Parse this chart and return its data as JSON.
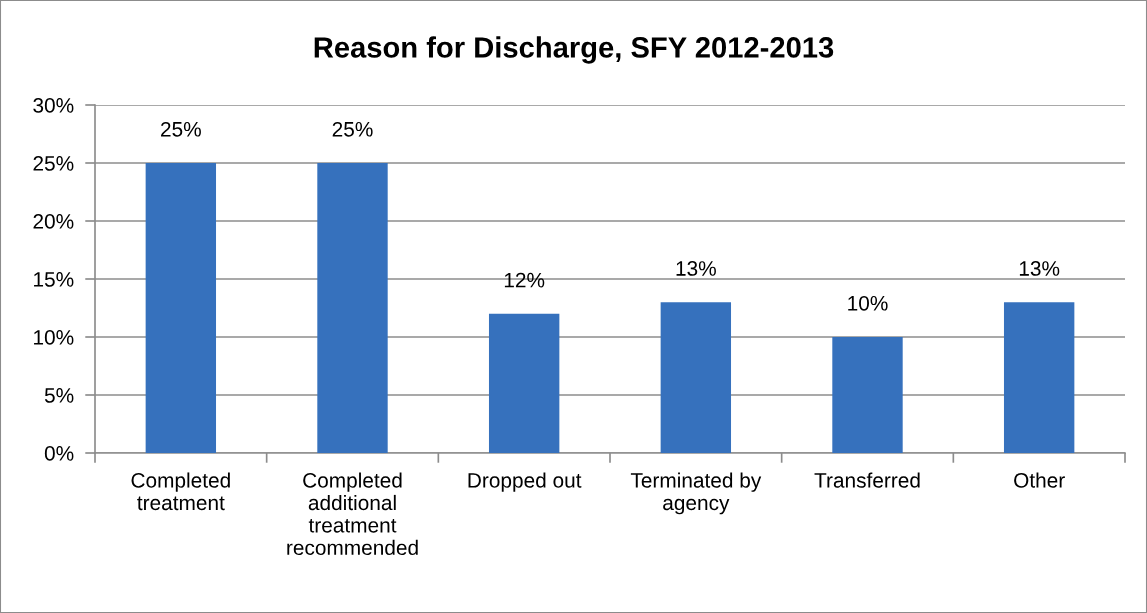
{
  "chart_data": {
    "type": "bar",
    "title": "Reason for Discharge, SFY 2012-2013",
    "categories": [
      "Completed\ntreatment",
      "Completed\nadditional\ntreatment\nrecommended",
      "Dropped out",
      "Terminated by\nagency",
      "Transferred",
      "Other"
    ],
    "values": [
      25,
      25,
      12,
      13,
      10,
      13
    ],
    "color": "#3671bd",
    "value_labels": [
      "25%",
      "25%",
      "12%",
      "13%",
      "10%",
      "13%"
    ],
    "ylim": [
      0,
      30
    ],
    "yticks": [
      {
        "value": 0,
        "label": "0%"
      },
      {
        "value": 5,
        "label": "5%"
      },
      {
        "value": 10,
        "label": "10%"
      },
      {
        "value": 15,
        "label": "15%"
      },
      {
        "value": 20,
        "label": "20%"
      },
      {
        "value": 25,
        "label": "25%"
      },
      {
        "value": 30,
        "label": "30%"
      }
    ],
    "grid": "y"
  }
}
